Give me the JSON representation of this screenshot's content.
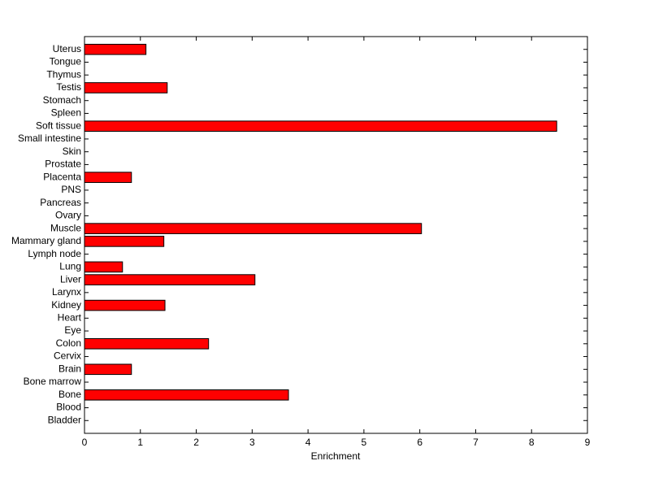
{
  "chart_data": {
    "type": "barh",
    "xlabel": "Enrichment",
    "categories": [
      "Bladder",
      "Blood",
      "Bone",
      "Bone marrow",
      "Brain",
      "Cervix",
      "Colon",
      "Eye",
      "Heart",
      "Kidney",
      "Larynx",
      "Liver",
      "Lung",
      "Lymph node",
      "Mammary gland",
      "Muscle",
      "Ovary",
      "Pancreas",
      "PNS",
      "Placenta",
      "Prostate",
      "Skin",
      "Small intestine",
      "Soft tissue",
      "Spleen",
      "Stomach",
      "Testis",
      "Thymus",
      "Tongue",
      "Uterus"
    ],
    "values": [
      0,
      0,
      3.65,
      0,
      0.84,
      0,
      2.22,
      0,
      0,
      1.44,
      0,
      3.05,
      0.68,
      0,
      1.42,
      6.03,
      0,
      0,
      0,
      0.84,
      0,
      0,
      0,
      8.45,
      0,
      0,
      1.48,
      0,
      0,
      1.1
    ],
    "color": "#ff0000",
    "xlim": [
      0,
      9
    ],
    "xticks": [
      0,
      1,
      2,
      3,
      4,
      5,
      6,
      7,
      8,
      9
    ]
  }
}
